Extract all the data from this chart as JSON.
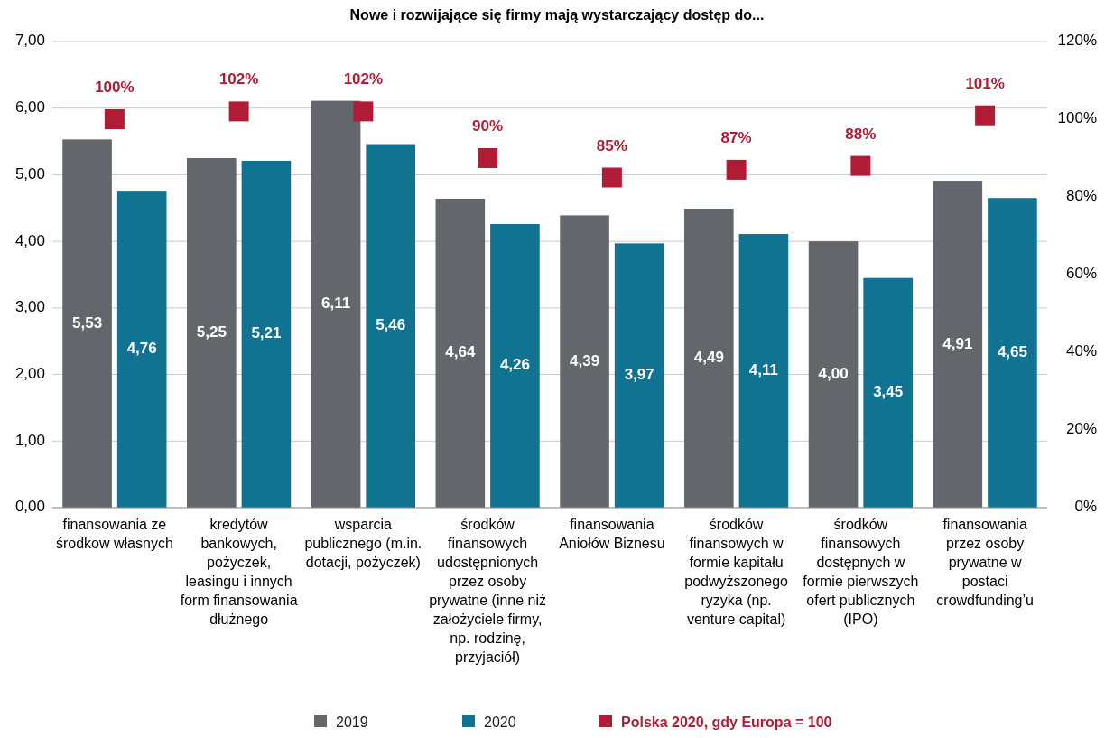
{
  "chart_data": {
    "type": "bar",
    "title": "Nowe i rozwijające się firmy mają wystarczający dostęp do...",
    "categories": [
      "finansowania ze środkow własnych",
      "kredytów bankowych, pożyczek, leasingu i innych form finansowania dłużnego",
      "wsparcia publicznego (m.in. dotacji, pożyczek)",
      "środków finansowych udostępnionych przez osoby prywatne (inne niż założyciele firmy, np. rodzinę, przyjaciół)",
      "finansowania Aniołów Biznesu",
      "środków finansowych w formie kapitału podwyższonego ryzyka (np. venture capital)",
      "środków finansowych dostępnych w formie pierwszych ofert publicznych (IPO)",
      "finansowania przez osoby prywatne w postaci crowdfunding’u"
    ],
    "series": [
      {
        "name": "2019",
        "color": "#63666a",
        "values": [
          5.53,
          5.25,
          6.11,
          4.64,
          4.39,
          4.49,
          4.0,
          4.91
        ],
        "value_labels": [
          "5,53",
          "5,25",
          "6,11",
          "4,64",
          "4,39",
          "4,49",
          "4,00",
          "4,91"
        ]
      },
      {
        "name": "2020",
        "color": "#0f7391",
        "values": [
          4.76,
          5.21,
          5.46,
          4.26,
          3.97,
          4.11,
          3.45,
          4.65
        ],
        "value_labels": [
          "4,76",
          "5,21",
          "5,46",
          "4,26",
          "3,97",
          "4,11",
          "3,45",
          "4,65"
        ]
      },
      {
        "name": "Polska 2020, gdy Europa = 100",
        "type": "scatter",
        "axis": "y2",
        "color": "#b01c35",
        "marker": "square",
        "values": [
          100,
          102,
          102,
          90,
          85,
          87,
          88,
          101
        ],
        "value_labels": [
          "100%",
          "102%",
          "102%",
          "90%",
          "85%",
          "87%",
          "88%",
          "101%"
        ]
      }
    ],
    "ylim": [
      0,
      7
    ],
    "yticks": [
      {
        "value": 0,
        "label": "0,00"
      },
      {
        "value": 1,
        "label": "1,00"
      },
      {
        "value": 2,
        "label": "2,00"
      },
      {
        "value": 3,
        "label": "3,00"
      },
      {
        "value": 4,
        "label": "4,00"
      },
      {
        "value": 5,
        "label": "5,00"
      },
      {
        "value": 6,
        "label": "6,00"
      },
      {
        "value": 7,
        "label": "7,00"
      }
    ],
    "y2lim": [
      0,
      120
    ],
    "y2ticks": [
      {
        "value": 0,
        "label": "0%"
      },
      {
        "value": 20,
        "label": "20%"
      },
      {
        "value": 40,
        "label": "40%"
      },
      {
        "value": 60,
        "label": "60%"
      },
      {
        "value": 80,
        "label": "80%"
      },
      {
        "value": 100,
        "label": "100%"
      },
      {
        "value": 120,
        "label": "120%"
      }
    ],
    "grid": "y",
    "legend": "bottom"
  }
}
